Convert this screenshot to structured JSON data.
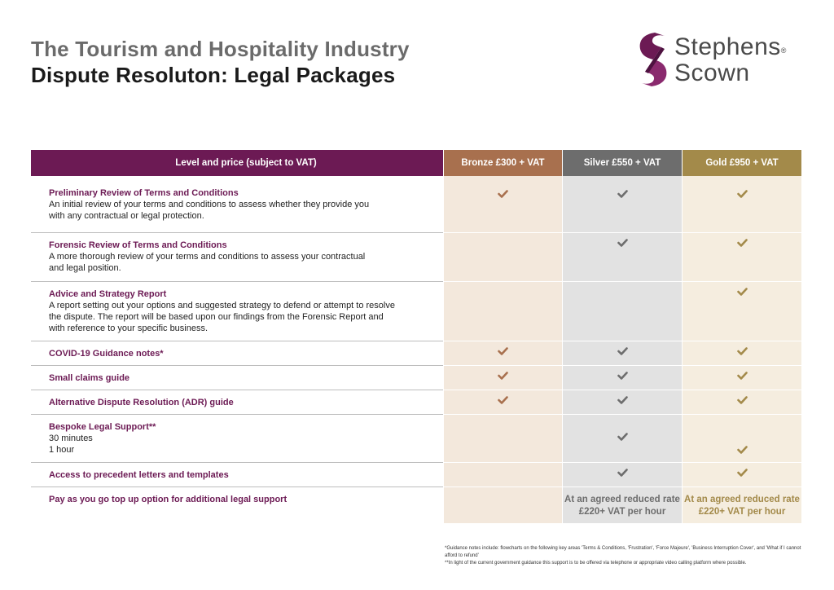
{
  "title": {
    "line1": "The Tourism and Hospitality Industry",
    "line2": "Dispute Resoluton: Legal Packages"
  },
  "logo": {
    "line1": "Stephens",
    "line2": "Scown",
    "reg": "®"
  },
  "colors": {
    "brand_purple": "#6c1a54",
    "bronze": "#a8704e",
    "silver": "#6d6d6d",
    "gold": "#a38a4a"
  },
  "table": {
    "headers": {
      "level": "Level and price (subject to VAT)",
      "bronze": "Bronze £300 + VAT",
      "silver": "Silver £550 + VAT",
      "gold": "Gold £950 + VAT"
    },
    "rows": [
      {
        "title": "Preliminary Review of Terms and Conditions",
        "description": "An initial review of your terms and conditions to assess whether they provide you with any contractual or legal protection.",
        "bronze": true,
        "silver": true,
        "gold": true
      },
      {
        "title": "Forensic Review of Terms and Conditions",
        "description": "A more thorough review of your terms and conditions to assess your contractual and legal position.",
        "bronze": false,
        "silver": true,
        "gold": true
      },
      {
        "title": "Advice and Strategy Report",
        "description": "A report setting out your options and suggested strategy to defend or attempt to resolve the dispute.  The report will be based upon our findings from the Forensic Report and with reference to your specific business.",
        "bronze": false,
        "silver": false,
        "gold": true
      },
      {
        "title": "COVID-19 Guidance notes*",
        "bronze": true,
        "silver": true,
        "gold": true
      },
      {
        "title": "Small claims guide",
        "bronze": true,
        "silver": true,
        "gold": true
      },
      {
        "title": "Alternative Dispute Resolution (ADR) guide",
        "bronze": true,
        "silver": true,
        "gold": true
      },
      {
        "title": "Bespoke Legal Support**",
        "sub1": "30 minutes",
        "sub2": "1 hour",
        "bronze": false,
        "silver": true,
        "gold": true
      },
      {
        "title": "Access to precedent letters and templates",
        "bronze": false,
        "silver": true,
        "gold": true
      },
      {
        "title": "Pay as you go top up option for additional legal support",
        "silver_text": "At an agreed reduced rate £220+ VAT per hour",
        "gold_text": "At an agreed reduced rate £220+ VAT per hour"
      }
    ]
  },
  "footnotes": {
    "note1": "*Guidance notes include: flowcharts on the following key areas 'Terms & Conditions, 'Frustration', 'Force Majeure', 'Business Interruption Cover', and 'What if I cannot afford to refund'",
    "note2": "**In light of the current government guidance this support is to be offered via telephone or appropriate video calling platform where possible."
  },
  "icons": {
    "check": "check-icon",
    "logo": "stephens-scown-s-logo-icon"
  }
}
